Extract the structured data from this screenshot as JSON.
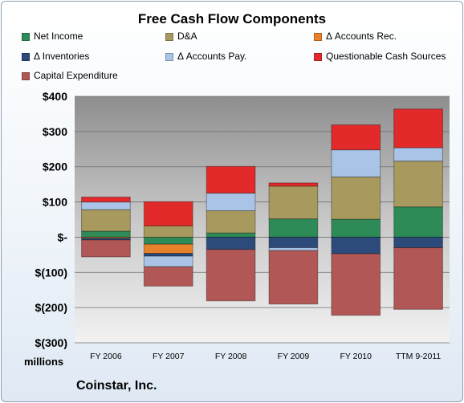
{
  "chart_data": {
    "type": "bar",
    "stacked": true,
    "title": "Free Cash Flow Components",
    "units_label": "millions",
    "company": "Coinstar, Inc.",
    "categories": [
      "FY 2006",
      "FY 2007",
      "FY 2008",
      "FY 2009",
      "FY 2010",
      "TTM 9-2011"
    ],
    "ylim": [
      -300,
      400
    ],
    "ytick_values": [
      400,
      300,
      200,
      100,
      0,
      -100,
      -200,
      -300
    ],
    "ytick_labels": [
      "$400",
      "$300",
      "$200",
      "$100",
      "$-",
      "$(100)",
      "$(200)",
      "$(300)"
    ],
    "grid": true,
    "legend_position": "top",
    "series": [
      {
        "name": "Net Income",
        "color": "#2e8b57",
        "values": [
          17,
          -20,
          12,
          52,
          51,
          86
        ]
      },
      {
        "name": "D&A",
        "color": "#a89a5e",
        "values": [
          61,
          32,
          63,
          93,
          120,
          130
        ]
      },
      {
        "name": "Δ Accounts Rec.",
        "color": "#e8822a",
        "values": [
          -3,
          -26,
          0,
          0,
          0,
          0
        ]
      },
      {
        "name": "Δ Inventories",
        "color": "#2c4a7a",
        "values": [
          -5,
          -8,
          -35,
          -30,
          -47,
          -30
        ]
      },
      {
        "name": "Δ Accounts Pay.",
        "color": "#a9c4e6",
        "values": [
          22,
          -30,
          50,
          -8,
          77,
          38
        ]
      },
      {
        "name": "Questionable Cash Sources",
        "color": "#e32a2a",
        "values": [
          14,
          69,
          76,
          9,
          71,
          110
        ]
      },
      {
        "name": "Capital Expenditure",
        "color": "#b15756",
        "values": [
          -48,
          -55,
          -146,
          -152,
          -175,
          -175
        ]
      }
    ]
  }
}
